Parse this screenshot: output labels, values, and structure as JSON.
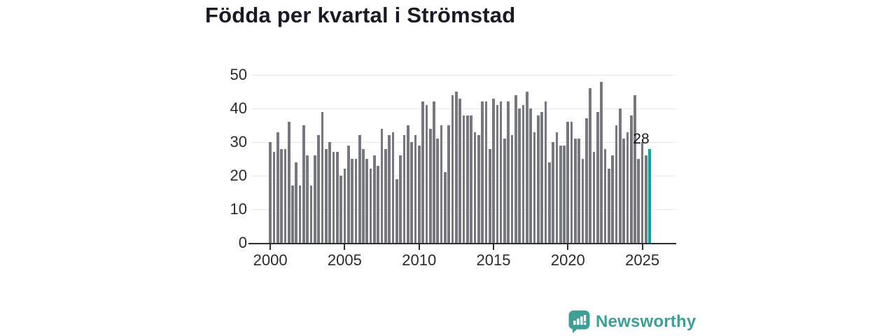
{
  "title": "Födda per kvartal i Strömstad",
  "branding": {
    "logo_text": "Newsworthy"
  },
  "colors": {
    "bar": "#77777f",
    "accent": "#00a5a2",
    "logo": "#3f9e95",
    "gridline": "#e7e7e7",
    "axis": "#2e2e2e",
    "title": "#1a1a24"
  },
  "chart_data": {
    "type": "bar",
    "title": "Födda per kvartal i Strömstad",
    "xlabel": "",
    "ylabel": "",
    "ylim": [
      0,
      50
    ],
    "y_ticks": [
      0,
      10,
      20,
      30,
      40,
      50
    ],
    "x_tick_labels": [
      "2000",
      "2005",
      "2010",
      "2015",
      "2020",
      "2025"
    ],
    "grid": true,
    "unit": "births per quarter",
    "highlight_last_bar": true,
    "annotation_label": "28",
    "years": [
      {
        "year": 2000,
        "values": [
          30,
          27,
          33,
          28
        ]
      },
      {
        "year": 2001,
        "values": [
          28,
          36,
          17,
          24
        ]
      },
      {
        "year": 2002,
        "values": [
          17,
          35,
          26,
          17
        ]
      },
      {
        "year": 2003,
        "values": [
          26,
          32,
          39,
          28
        ]
      },
      {
        "year": 2004,
        "values": [
          30,
          27,
          27,
          20
        ]
      },
      {
        "year": 2005,
        "values": [
          22,
          29,
          25,
          25
        ]
      },
      {
        "year": 2006,
        "values": [
          32,
          28,
          25,
          22
        ]
      },
      {
        "year": 2007,
        "values": [
          26,
          23,
          34,
          28
        ]
      },
      {
        "year": 2008,
        "values": [
          32,
          33,
          19,
          26
        ]
      },
      {
        "year": 2009,
        "values": [
          32,
          35,
          30,
          32
        ]
      },
      {
        "year": 2010,
        "values": [
          29,
          42,
          41,
          34
        ]
      },
      {
        "year": 2011,
        "values": [
          42,
          31,
          35,
          21
        ]
      },
      {
        "year": 2012,
        "values": [
          35,
          44,
          45,
          43
        ]
      },
      {
        "year": 2013,
        "values": [
          38,
          38,
          38,
          33
        ]
      },
      {
        "year": 2014,
        "values": [
          32,
          42,
          42,
          28
        ]
      },
      {
        "year": 2015,
        "values": [
          43,
          41,
          42,
          31
        ]
      },
      {
        "year": 2016,
        "values": [
          42,
          32,
          44,
          40
        ]
      },
      {
        "year": 2017,
        "values": [
          41,
          45,
          40,
          33
        ]
      },
      {
        "year": 2018,
        "values": [
          38,
          39,
          42,
          24
        ]
      },
      {
        "year": 2019,
        "values": [
          30,
          33,
          29,
          29
        ]
      },
      {
        "year": 2020,
        "values": [
          36,
          36,
          31,
          31
        ]
      },
      {
        "year": 2021,
        "values": [
          25,
          37,
          46,
          27
        ]
      },
      {
        "year": 2022,
        "values": [
          39,
          48,
          28,
          22
        ]
      },
      {
        "year": 2023,
        "values": [
          26,
          35,
          40,
          31
        ]
      },
      {
        "year": 2024,
        "values": [
          33,
          38,
          44,
          25
        ]
      },
      {
        "year": 2025,
        "values": [
          30,
          26,
          28
        ]
      }
    ]
  }
}
